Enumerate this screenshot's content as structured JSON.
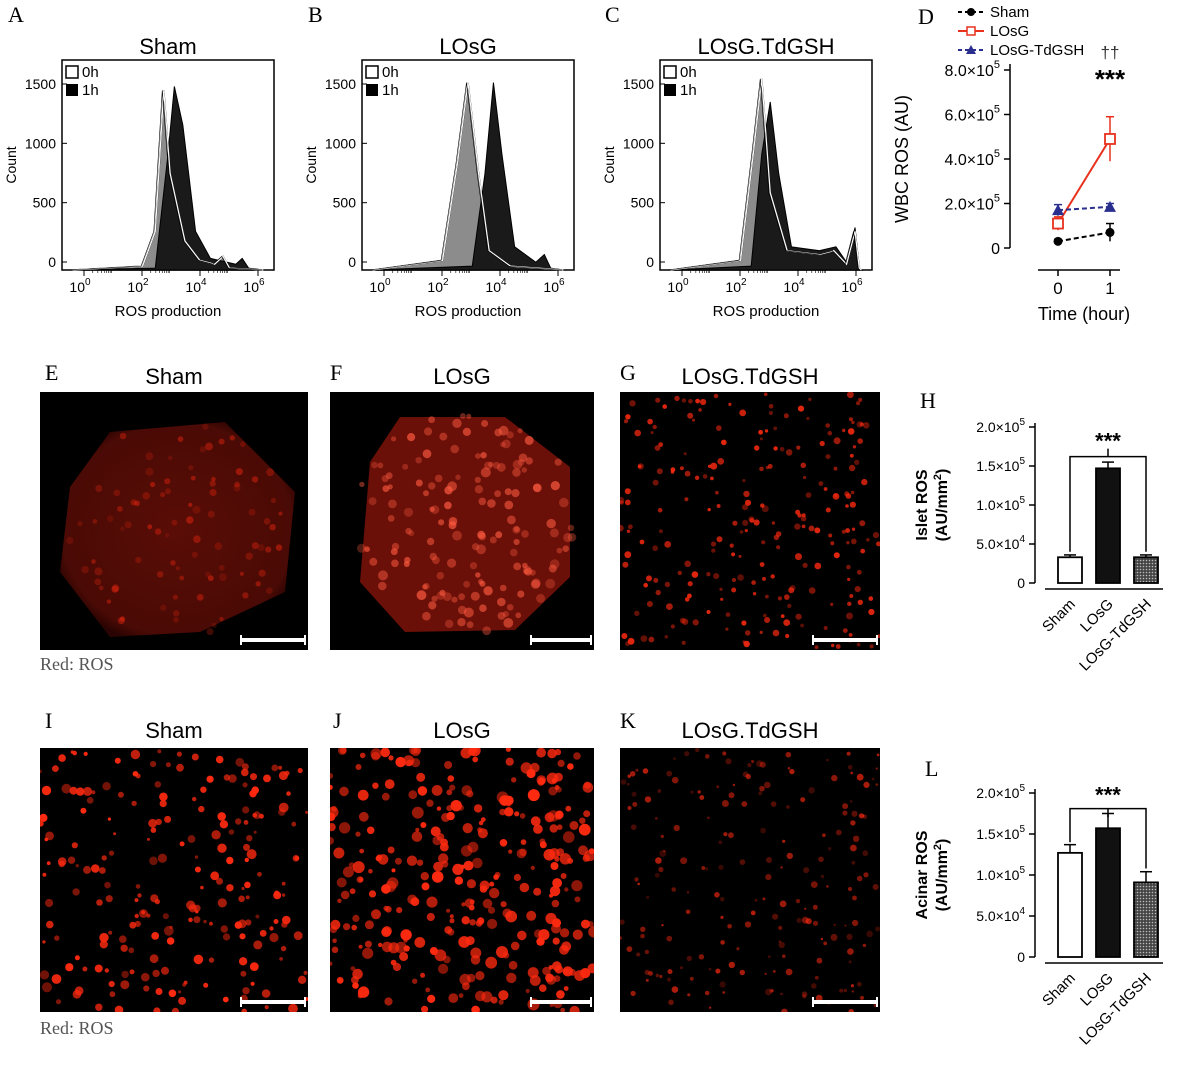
{
  "letters": [
    "A",
    "B",
    "C",
    "D",
    "E",
    "F",
    "G",
    "H",
    "I",
    "J",
    "K",
    "L"
  ],
  "histograms": [
    {
      "title": "Sham",
      "ylabel": "Count",
      "xlabel": "ROS production",
      "legend": [
        "0h",
        "1h"
      ],
      "yticks": [
        "0",
        "500",
        "1000",
        "1500"
      ],
      "xticks": [
        "10",
        "10",
        "10",
        "10"
      ],
      "xexp": [
        "0",
        "2",
        "4",
        "6"
      ]
    },
    {
      "title": "LOsG",
      "ylabel": "Count",
      "xlabel": "ROS production",
      "legend": [
        "0h",
        "1h"
      ],
      "yticks": [
        "0",
        "500",
        "1000",
        "1500"
      ],
      "xticks": [
        "10",
        "10",
        "10",
        "10"
      ],
      "xexp": [
        "0",
        "2",
        "4",
        "6"
      ]
    },
    {
      "title": "LOsG.TdGSH",
      "ylabel": "Count",
      "xlabel": "ROS production",
      "legend": [
        "0h",
        "1h"
      ],
      "yticks": [
        "0",
        "500",
        "1000",
        "1500"
      ],
      "xticks": [
        "10",
        "10",
        "10",
        "10"
      ],
      "xexp": [
        "0",
        "2",
        "4",
        "6"
      ]
    }
  ],
  "line_chart": {
    "ylabel": "WBC ROS (AU)",
    "xlabel": "Time (hour)",
    "legend": [
      "Sham",
      "LOsG",
      "LOsG-TdGSH"
    ],
    "yticks": [
      "0",
      "2.0×10",
      "4.0×10",
      "6.0×10",
      "8.0×10"
    ],
    "ytick_exp": "5",
    "xticks": [
      "0",
      "1"
    ],
    "sig1": "††",
    "sig2": "***"
  },
  "micro_titles": [
    "Sham",
    "LOsG",
    "LOsG.TdGSH",
    "Sham",
    "LOsG",
    "LOsG.TdGSH"
  ],
  "caption": "Red: ROS",
  "bar_islet": {
    "ylabel1": "Islet ROS",
    "ylabel2": "(AU/mm",
    "ylabel_sup": "2",
    "ylabel3": ")",
    "yticks": [
      "0",
      "5.0×10",
      "1.0×10",
      "1.5×10",
      "2.0×10"
    ],
    "yexp": [
      "",
      "4",
      "5",
      "5",
      "5"
    ],
    "categories": [
      "Sham",
      "LOsG",
      "LOsG-TdGSH"
    ],
    "sig": "***"
  },
  "bar_acinar": {
    "ylabel1": "Acinar ROS",
    "ylabel2": "(AU/mm",
    "ylabel_sup": "2",
    "ylabel3": ")",
    "yticks": [
      "0",
      "5.0×10",
      "1.0×10",
      "1.5×10",
      "2.0×10"
    ],
    "yexp": [
      "",
      "4",
      "5",
      "5",
      "5"
    ],
    "categories": [
      "Sham",
      "LOsG",
      "LOsG-TdGSH"
    ],
    "sig": "***"
  },
  "colors": {
    "sham": "#000000",
    "losg": "#e8301c",
    "tdgsh": "#2a2f8f",
    "ros_red": "#ff2a10"
  },
  "chart_data": [
    {
      "type": "line",
      "x": [
        0,
        1
      ],
      "series": [
        {
          "name": "Sham",
          "values": [
            30000,
            70000
          ],
          "err": [
            8000,
            40000
          ]
        },
        {
          "name": "LOsG",
          "values": [
            110000,
            490000
          ],
          "err": [
            30000,
            100000
          ]
        },
        {
          "name": "LOsG-TdGSH",
          "values": [
            170000,
            185000
          ],
          "err": [
            25000,
            15000
          ]
        }
      ],
      "ylim": [
        0,
        800000
      ]
    },
    {
      "type": "bar",
      "categories": [
        "Sham",
        "LOsG",
        "LOsG-TdGSH"
      ],
      "values": [
        33000,
        147000,
        33000
      ],
      "err": [
        3000,
        8000,
        3000
      ],
      "ylim": [
        0,
        200000
      ]
    },
    {
      "type": "bar",
      "categories": [
        "Sham",
        "LOsG",
        "LOsG-TdGSH"
      ],
      "values": [
        127000,
        157000,
        91000
      ],
      "err": [
        10000,
        18000,
        13000
      ],
      "ylim": [
        0,
        200000
      ]
    }
  ]
}
